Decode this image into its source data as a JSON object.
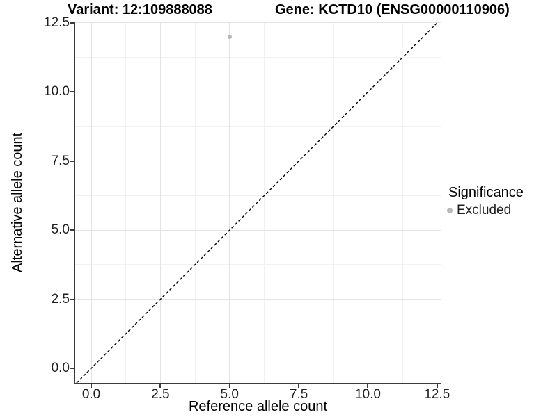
{
  "chart_data": {
    "type": "scatter",
    "title_left": "Variant: 12:109888088",
    "title_right": "Gene: KCTD10 (ENSG00000110906)",
    "xlabel": "Reference allele count",
    "ylabel": "Alternative allele count",
    "xlim": [
      -0.58,
      12.63
    ],
    "ylim": [
      -0.53,
      12.55
    ],
    "x_ticks": [
      0,
      2.5,
      5,
      7.5,
      10,
      12.5
    ],
    "x_tick_labels": [
      "0.0",
      "2.5",
      "5.0",
      "7.5",
      "10.0",
      "12.5"
    ],
    "y_ticks": [
      0,
      2.5,
      5,
      7.5,
      10,
      12.5
    ],
    "y_tick_labels": [
      "0.0",
      "2.5",
      "5.0",
      "7.5",
      "10.0",
      "12.5"
    ],
    "minor_ticks": [
      1.25,
      3.75,
      6.25,
      8.75,
      11.25
    ],
    "grid": true,
    "legend_position": "right",
    "series": [
      {
        "name": "Excluded",
        "color": "#b9b9b9",
        "points": [
          {
            "x": 5,
            "y": 12
          }
        ]
      }
    ],
    "identity_line": {
      "type": "y-equals-x",
      "style": "dashed",
      "color": "#000000"
    },
    "legend": {
      "title": "Significance",
      "items": [
        {
          "label": "Excluded",
          "color": "#b9b9b9"
        }
      ]
    },
    "colors": {
      "background": "#ffffff",
      "grid_major": "#e3e3e3",
      "grid_minor": "#f1f1f1",
      "axis": "#3a3a3a",
      "excluded_point": "#b9b9b9"
    }
  }
}
